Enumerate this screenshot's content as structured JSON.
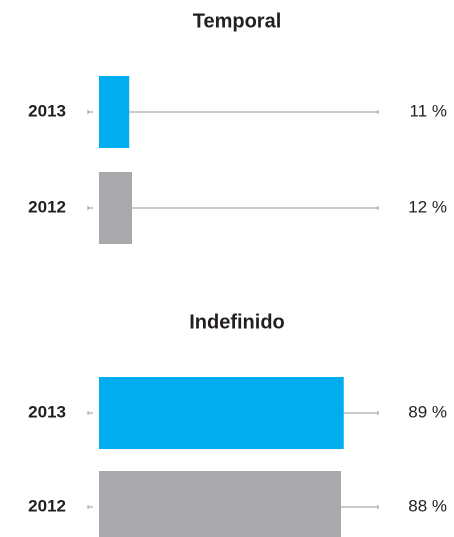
{
  "chart_data": [
    {
      "type": "bar",
      "orientation": "horizontal",
      "title": "Temporal",
      "categories": [
        "2013",
        "2012"
      ],
      "values": [
        11,
        12
      ],
      "value_labels": [
        "11 %",
        "12 %"
      ],
      "colors": [
        "#00aeef",
        "#a7a9ac"
      ],
      "xlim": [
        0,
        100
      ]
    },
    {
      "type": "bar",
      "orientation": "horizontal",
      "title": "Indefinido",
      "categories": [
        "2013",
        "2012"
      ],
      "values": [
        89,
        88
      ],
      "value_labels": [
        "89 %",
        "88 %"
      ],
      "colors": [
        "#00aeef",
        "#a7a9ac"
      ],
      "xlim": [
        0,
        100
      ]
    }
  ]
}
